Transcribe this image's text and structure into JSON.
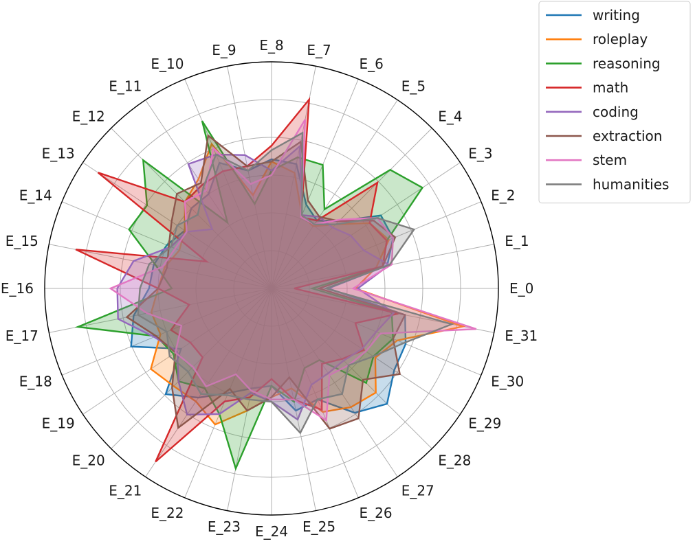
{
  "chart_data": {
    "type": "radar",
    "categories": [
      "E_0",
      "E_1",
      "E_2",
      "E_3",
      "E_4",
      "E_5",
      "E_6",
      "E_7",
      "E_8",
      "E_9",
      "E_10",
      "E_11",
      "E_12",
      "E_13",
      "E_14",
      "E_15",
      "E_16",
      "E_17",
      "E_18",
      "E_19",
      "E_20",
      "E_21",
      "E_22",
      "E_23",
      "E_24",
      "E_25",
      "E_26",
      "E_27",
      "E_28",
      "E_29",
      "E_30",
      "E_31"
    ],
    "rlim": [
      0,
      1
    ],
    "radial_gridlines": 6,
    "legend_position": "outside-top-right",
    "series": [
      {
        "name": "writing",
        "color": "#1f77b4",
        "values": [
          0.25,
          0.52,
          0.58,
          0.58,
          0.42,
          0.36,
          0.4,
          0.56,
          0.57,
          0.53,
          0.6,
          0.5,
          0.5,
          0.46,
          0.5,
          0.53,
          0.54,
          0.62,
          0.67,
          0.48,
          0.66,
          0.58,
          0.5,
          0.45,
          0.43,
          0.55,
          0.53,
          0.66,
          0.72,
          0.65,
          0.64,
          0.6
        ]
      },
      {
        "name": "roleplay",
        "color": "#ff7f0e",
        "values": [
          0.37,
          0.47,
          0.56,
          0.52,
          0.4,
          0.33,
          0.35,
          0.52,
          0.56,
          0.42,
          0.69,
          0.58,
          0.54,
          0.46,
          0.44,
          0.48,
          0.5,
          0.54,
          0.53,
          0.64,
          0.61,
          0.6,
          0.65,
          0.55,
          0.48,
          0.45,
          0.59,
          0.63,
          0.65,
          0.55,
          0.6,
          0.86
        ]
      },
      {
        "name": "reasoning",
        "color": "#2ca02c",
        "values": [
          0.18,
          0.5,
          0.55,
          0.8,
          0.74,
          0.42,
          0.59,
          0.59,
          0.52,
          0.38,
          0.8,
          0.35,
          0.8,
          0.66,
          0.68,
          0.52,
          0.44,
          0.87,
          0.55,
          0.52,
          0.58,
          0.53,
          0.6,
          0.81,
          0.43,
          0.51,
          0.38,
          0.38,
          0.59,
          0.54,
          0.58,
          0.54
        ]
      },
      {
        "name": "math",
        "color": "#d62728",
        "values": [
          0.1,
          0.5,
          0.55,
          0.52,
          0.66,
          0.36,
          0.34,
          0.85,
          0.63,
          0.55,
          0.56,
          0.55,
          0.54,
          0.92,
          0.31,
          0.88,
          0.5,
          0.37,
          0.48,
          0.43,
          0.43,
          0.92,
          0.54,
          0.49,
          0.4,
          0.5,
          0.58,
          0.4,
          0.44,
          0.49,
          0.4,
          0.57
        ]
      },
      {
        "name": "coding",
        "color": "#9467bd",
        "values": [
          0.38,
          0.53,
          0.44,
          0.42,
          0.38,
          0.38,
          0.35,
          0.64,
          0.52,
          0.6,
          0.64,
          0.66,
          0.37,
          0.45,
          0.48,
          0.62,
          0.68,
          0.69,
          0.56,
          0.5,
          0.58,
          0.67,
          0.6,
          0.47,
          0.5,
          0.59,
          0.46,
          0.45,
          0.45,
          0.48,
          0.5,
          0.55
        ]
      },
      {
        "name": "extraction",
        "color": "#8c564b",
        "values": [
          0.21,
          0.5,
          0.59,
          0.54,
          0.42,
          0.38,
          0.42,
          0.66,
          0.56,
          0.55,
          0.73,
          0.56,
          0.59,
          0.53,
          0.49,
          0.47,
          0.5,
          0.65,
          0.55,
          0.51,
          0.62,
          0.74,
          0.48,
          0.55,
          0.48,
          0.4,
          0.67,
          0.69,
          0.57,
          0.68,
          0.58,
          0.6
        ]
      },
      {
        "name": "stem",
        "color": "#e377c2",
        "values": [
          0.36,
          0.54,
          0.58,
          0.56,
          0.43,
          0.34,
          0.34,
          0.76,
          0.5,
          0.47,
          0.67,
          0.52,
          0.54,
          0.45,
          0.46,
          0.49,
          0.71,
          0.56,
          0.43,
          0.51,
          0.49,
          0.52,
          0.41,
          0.46,
          0.49,
          0.5,
          0.63,
          0.46,
          0.48,
          0.5,
          0.52,
          0.92
        ]
      },
      {
        "name": "humanities",
        "color": "#7f7f7f",
        "values": [
          0.24,
          0.53,
          0.68,
          0.56,
          0.4,
          0.34,
          0.35,
          0.7,
          0.61,
          0.53,
          0.64,
          0.54,
          0.46,
          0.5,
          0.48,
          0.55,
          0.58,
          0.6,
          0.5,
          0.54,
          0.52,
          0.56,
          0.51,
          0.5,
          0.5,
          0.65,
          0.53,
          0.56,
          0.48,
          0.54,
          0.63,
          0.81
        ]
      }
    ]
  }
}
